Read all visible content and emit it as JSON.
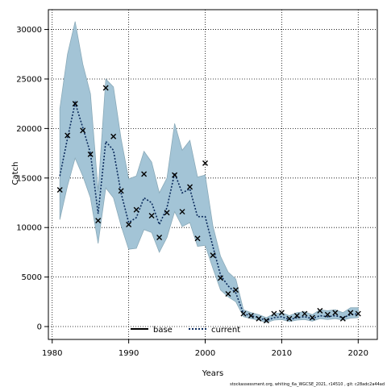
{
  "chart_data": {
    "type": "line",
    "xlabel": "Years",
    "ylabel": "Catch",
    "xlim": [
      1979.5,
      2022.5
    ],
    "ylim": [
      -1300,
      32000
    ],
    "xticks": [
      1980,
      1990,
      2000,
      2010,
      2020
    ],
    "yticks": [
      0,
      5000,
      10000,
      15000,
      20000,
      25000,
      30000
    ],
    "grid": true,
    "legend": {
      "placement": "bottom-center",
      "entries": [
        "base",
        "current"
      ]
    },
    "colors": {
      "band": "#a3c4d6",
      "band_edge": "#8aaab9",
      "current_line": "#0a2a5c",
      "observed": "#000000",
      "base_line": "#000000"
    },
    "footer": "stockassessment.org, whiting_6a_WGCSE_2021, r14510 , git: c28adc2a44ad",
    "series": [
      {
        "name": "current",
        "style": "dotted",
        "x": [
          1981,
          1982,
          1983,
          1984,
          1985,
          1986,
          1987,
          1988,
          1989,
          1990,
          1991,
          1992,
          1993,
          1994,
          1995,
          1996,
          1997,
          1998,
          1999,
          2000,
          2001,
          2002,
          2003,
          2004,
          2005,
          2006,
          2007,
          2008,
          2009,
          2010,
          2011,
          2012,
          2013,
          2014,
          2015,
          2016,
          2017,
          2018,
          2019,
          2020
        ],
        "y": [
          15200,
          19000,
          22600,
          20100,
          17500,
          11400,
          18700,
          17800,
          13500,
          10500,
          11000,
          13000,
          12500,
          10300,
          12000,
          15500,
          13500,
          13900,
          11100,
          11100,
          8100,
          5200,
          4100,
          3400,
          1300,
          1100,
          900,
          600,
          900,
          1000,
          700,
          900,
          1000,
          800,
          1100,
          1000,
          1100,
          900,
          1200,
          1300
        ],
        "upper": [
          22000,
          27500,
          30800,
          26500,
          23500,
          13700,
          25000,
          24200,
          19000,
          14900,
          15200,
          17700,
          16600,
          13500,
          15000,
          20500,
          17800,
          18800,
          15100,
          15300,
          10200,
          7100,
          5500,
          4800,
          1700,
          1400,
          1200,
          900,
          1300,
          1400,
          1100,
          1400,
          1500,
          1200,
          1700,
          1600,
          1700,
          1400,
          1900,
          1900
        ],
        "lower": [
          10800,
          14200,
          17000,
          15200,
          13000,
          8400,
          14000,
          13000,
          10200,
          7800,
          7900,
          9800,
          9500,
          7500,
          9000,
          11600,
          10100,
          10500,
          8100,
          8200,
          5900,
          3700,
          3000,
          2500,
          1000,
          800,
          650,
          400,
          650,
          700,
          500,
          650,
          700,
          550,
          800,
          700,
          800,
          650,
          850,
          900
        ]
      }
    ],
    "observed": {
      "x": [
        1981,
        1982,
        1983,
        1984,
        1985,
        1986,
        1987,
        1988,
        1989,
        1990,
        1991,
        1992,
        1993,
        1994,
        1995,
        1996,
        1997,
        1998,
        1999,
        2000,
        2001,
        2002,
        2003,
        2004,
        2005,
        2006,
        2007,
        2008,
        2009,
        2010,
        2011,
        2012,
        2013,
        2014,
        2015,
        2016,
        2017,
        2018,
        2019,
        2020
      ],
      "y": [
        13800,
        19300,
        22500,
        19800,
        17400,
        10700,
        24100,
        19200,
        13700,
        10300,
        11800,
        15400,
        11200,
        9000,
        11500,
        15300,
        11600,
        14100,
        8900,
        16500,
        7200,
        4900,
        3300,
        3700,
        1300,
        1100,
        800,
        600,
        1300,
        1400,
        800,
        1100,
        1300,
        900,
        1600,
        1200,
        1400,
        800,
        1400,
        1300
      ]
    }
  }
}
